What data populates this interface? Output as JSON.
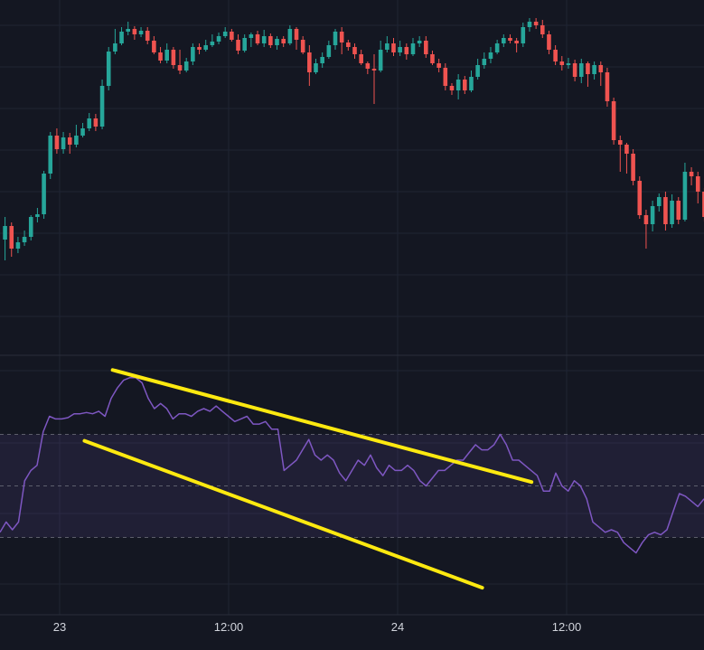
{
  "chart_data": [
    {
      "type": "candlestick",
      "x_tick_labels": [
        "23",
        "12:00",
        "24",
        "12:00"
      ],
      "colors": {
        "up": "#26a69a",
        "down": "#ef5350",
        "background": "#141722",
        "grid": "#1f2433"
      },
      "candles": [
        [
          265,
          250,
          240,
          288
        ],
        [
          250,
          275,
          246,
          284
        ],
        [
          275,
          268,
          262,
          280
        ],
        [
          268,
          262,
          255,
          272
        ],
        [
          262,
          240,
          238,
          266
        ],
        [
          240,
          237,
          230,
          246
        ],
        [
          237,
          192,
          189,
          242
        ],
        [
          192,
          150,
          146,
          198
        ],
        [
          150,
          165,
          142,
          170
        ],
        [
          165,
          152,
          146,
          170
        ],
        [
          152,
          160,
          147,
          170
        ],
        [
          160,
          150,
          138,
          163
        ],
        [
          150,
          142,
          136,
          152
        ],
        [
          142,
          131,
          125,
          145
        ],
        [
          131,
          140,
          126,
          145
        ],
        [
          140,
          95,
          88,
          143
        ],
        [
          95,
          57,
          52,
          100
        ],
        [
          57,
          48,
          32,
          60
        ],
        [
          48,
          35,
          30,
          50
        ],
        [
          35,
          32,
          24,
          39
        ],
        [
          32,
          38,
          29,
          44
        ],
        [
          38,
          34,
          30,
          41
        ],
        [
          34,
          45,
          30,
          49
        ],
        [
          45,
          58,
          40,
          60
        ],
        [
          58,
          67,
          52,
          70
        ],
        [
          67,
          55,
          48,
          70
        ],
        [
          55,
          72,
          52,
          76
        ],
        [
          72,
          78,
          55,
          82
        ],
        [
          78,
          68,
          64,
          80
        ],
        [
          68,
          52,
          48,
          72
        ],
        [
          52,
          55,
          48,
          60
        ],
        [
          55,
          50,
          44,
          57
        ],
        [
          50,
          46,
          38,
          52
        ],
        [
          46,
          40,
          36,
          49
        ],
        [
          40,
          35,
          30,
          42
        ],
        [
          35,
          44,
          32,
          46
        ],
        [
          44,
          56,
          38,
          60
        ],
        [
          56,
          42,
          38,
          58
        ],
        [
          42,
          38,
          36,
          52
        ],
        [
          38,
          48,
          34,
          50
        ],
        [
          48,
          40,
          33,
          52
        ],
        [
          40,
          50,
          37,
          53
        ],
        [
          50,
          43,
          40,
          55
        ],
        [
          43,
          48,
          40,
          52
        ],
        [
          48,
          32,
          28,
          50
        ],
        [
          32,
          44,
          30,
          55
        ],
        [
          44,
          58,
          40,
          60
        ],
        [
          58,
          80,
          50,
          95
        ],
        [
          80,
          70,
          65,
          82
        ],
        [
          70,
          63,
          58,
          75
        ],
        [
          63,
          50,
          45,
          65
        ],
        [
          50,
          35,
          32,
          55
        ],
        [
          35,
          47,
          30,
          60
        ],
        [
          47,
          52,
          44,
          56
        ],
        [
          52,
          60,
          48,
          65
        ],
        [
          60,
          70,
          55,
          72
        ],
        [
          70,
          76,
          68,
          82
        ],
        [
          76,
          78,
          60,
          115
        ],
        [
          78,
          55,
          45,
          80
        ],
        [
          55,
          48,
          40,
          58
        ],
        [
          48,
          58,
          42,
          62
        ],
        [
          58,
          52,
          45,
          62
        ],
        [
          52,
          60,
          48,
          66
        ],
        [
          60,
          48,
          42,
          62
        ],
        [
          48,
          45,
          40,
          52
        ],
        [
          45,
          60,
          40,
          64
        ],
        [
          60,
          70,
          56,
          72
        ],
        [
          70,
          75,
          65,
          80
        ],
        [
          75,
          95,
          70,
          100
        ],
        [
          95,
          100,
          92,
          105
        ],
        [
          100,
          88,
          82,
          110
        ],
        [
          88,
          100,
          84,
          104
        ],
        [
          100,
          85,
          78,
          102
        ],
        [
          85,
          72,
          65,
          88
        ],
        [
          72,
          65,
          58,
          76
        ],
        [
          65,
          58,
          52,
          70
        ],
        [
          58,
          48,
          44,
          60
        ],
        [
          48,
          42,
          38,
          52
        ],
        [
          42,
          45,
          38,
          48
        ],
        [
          45,
          48,
          42,
          58
        ],
        [
          48,
          30,
          25,
          52
        ],
        [
          30,
          24,
          20,
          35
        ],
        [
          24,
          28,
          20,
          32
        ],
        [
          28,
          38,
          22,
          42
        ],
        [
          38,
          55,
          34,
          60
        ],
        [
          55,
          68,
          50,
          72
        ],
        [
          68,
          72,
          62,
          78
        ],
        [
          72,
          70,
          64,
          76
        ],
        [
          70,
          85,
          66,
          90
        ],
        [
          85,
          70,
          65,
          92
        ],
        [
          70,
          82,
          68,
          96
        ],
        [
          82,
          72,
          68,
          88
        ],
        [
          72,
          80,
          68,
          95
        ],
        [
          80,
          112,
          75,
          118
        ],
        [
          112,
          155,
          108,
          160
        ],
        [
          155,
          160,
          150,
          190
        ],
        [
          160,
          170,
          158,
          192
        ],
        [
          170,
          200,
          165,
          205
        ],
        [
          200,
          238,
          195,
          242
        ],
        [
          238,
          248,
          232,
          275
        ],
        [
          248,
          228,
          222,
          256
        ],
        [
          228,
          218,
          214,
          234
        ],
        [
          218,
          248,
          212,
          255
        ],
        [
          248,
          222,
          215,
          252
        ],
        [
          222,
          243,
          218,
          248
        ],
        [
          243,
          190,
          180,
          245
        ],
        [
          190,
          195,
          185,
          205
        ],
        [
          195,
          212,
          190,
          225
        ],
        [
          212,
          240,
          208,
          245
        ]
      ]
    },
    {
      "type": "line",
      "y_range": [
        0,
        100
      ],
      "guide_levels": [
        70,
        50,
        30
      ],
      "band": [
        30,
        70
      ],
      "series_color": "#7e57c2",
      "values": [
        32,
        36,
        33,
        36,
        52,
        56,
        58,
        71,
        77,
        76,
        76,
        76.5,
        78,
        78,
        78.5,
        78,
        79,
        77,
        84,
        88,
        91,
        92,
        92,
        90,
        84,
        80,
        82,
        80,
        76,
        78,
        78,
        77,
        79,
        80,
        79,
        81,
        79,
        77,
        75,
        76,
        77,
        74,
        74,
        75,
        72,
        72,
        56,
        58,
        60,
        64,
        68,
        62,
        60,
        62,
        60,
        55,
        52,
        56,
        60,
        58,
        62,
        57,
        54,
        58,
        56,
        56,
        58,
        56,
        52,
        50,
        53,
        56,
        56,
        58,
        60,
        60,
        63,
        66,
        64,
        64,
        66,
        70,
        66,
        60,
        60,
        58,
        56,
        54,
        48,
        48,
        55,
        50,
        48,
        52,
        50,
        45,
        36,
        34,
        32,
        33,
        32,
        28,
        26,
        24,
        28,
        31,
        32,
        31,
        33,
        40,
        47,
        46,
        44,
        42,
        45
      ],
      "trendlines": [
        {
          "color": "#fde910",
          "from": [
            16,
            95
          ],
          "to": [
            75.5,
            51.5
          ]
        },
        {
          "color": "#fde910",
          "from": [
            12,
            67.5
          ],
          "to": [
            68.5,
            10.5
          ]
        }
      ]
    }
  ]
}
